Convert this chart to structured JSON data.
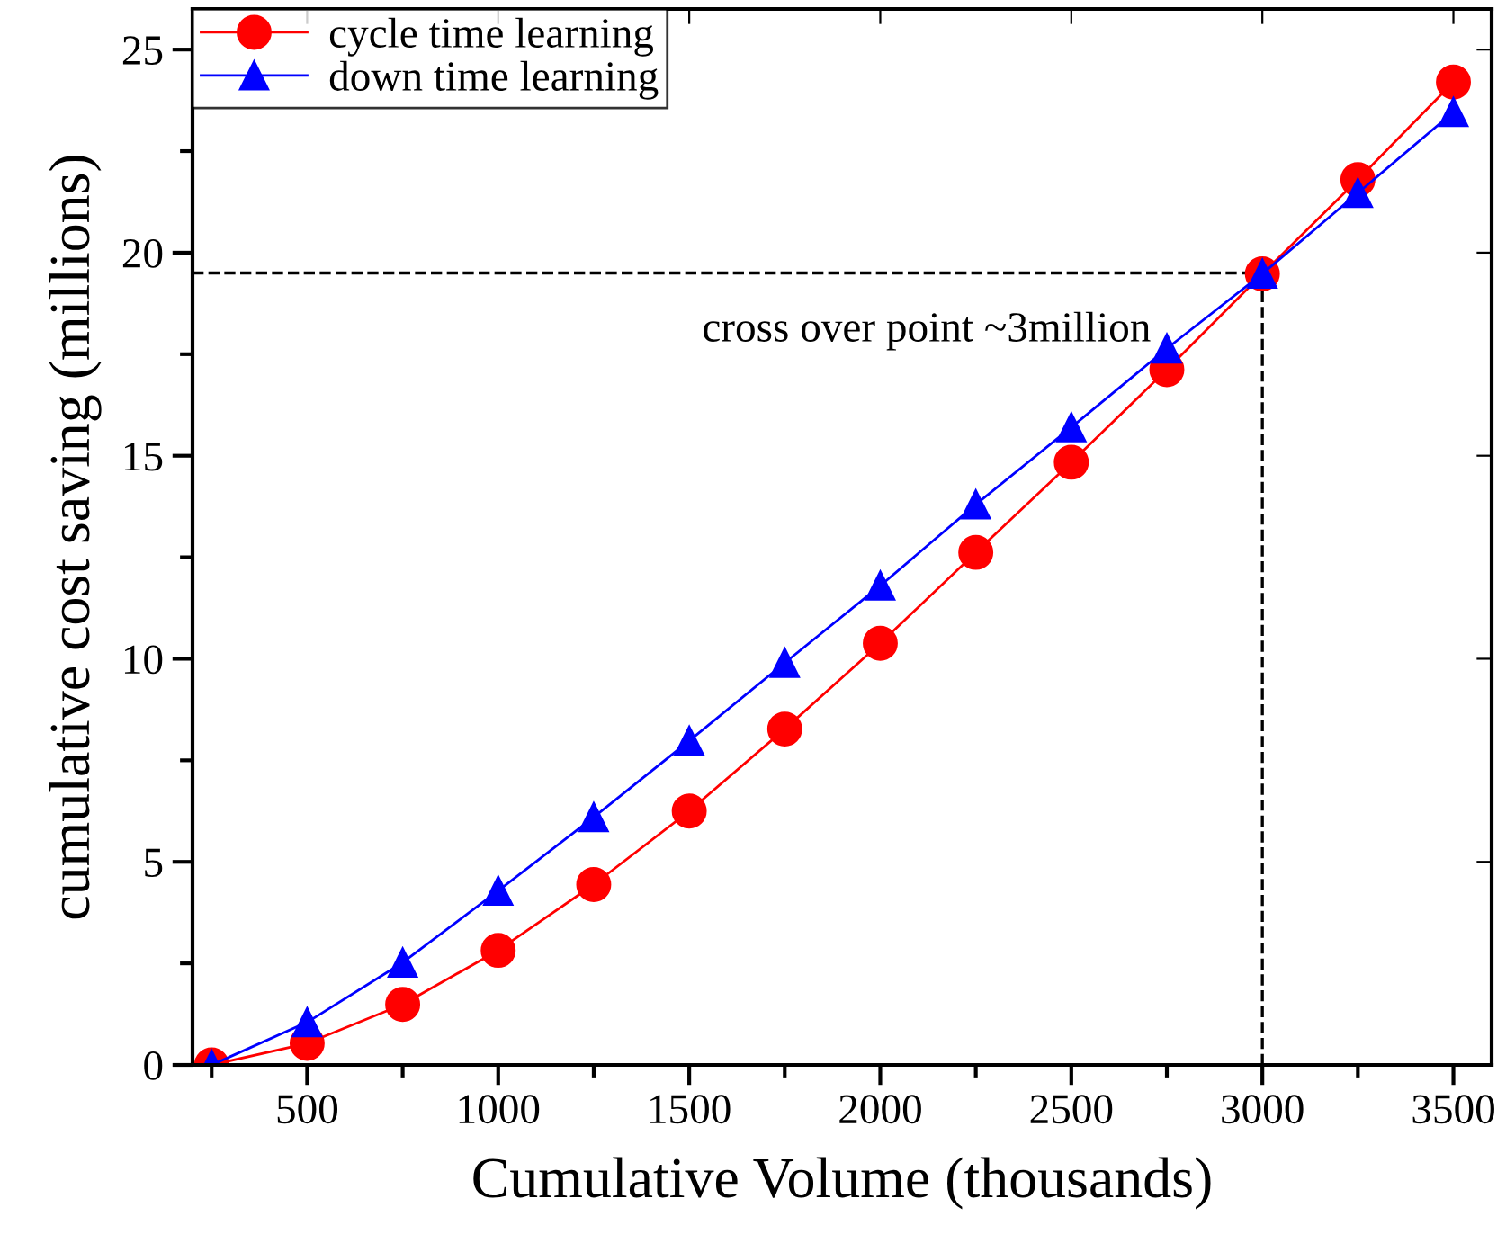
{
  "chart_data": {
    "type": "line",
    "xlabel": "Cumulative Volume (thousands)",
    "ylabel": "cumulative cost saving (millions)",
    "x": [
      250,
      500,
      750,
      1000,
      1250,
      1500,
      1750,
      2000,
      2250,
      2500,
      2750,
      3000,
      3250,
      3500
    ],
    "series": [
      {
        "name": "cycle time learning",
        "color": "#ff0000",
        "marker": "circle",
        "values": [
          0,
          0.53,
          1.49,
          2.82,
          4.44,
          6.25,
          8.27,
          10.38,
          12.62,
          14.84,
          17.12,
          19.48,
          21.8,
          24.2
        ]
      },
      {
        "name": "down time learning",
        "color": "#0000ff",
        "marker": "triangle",
        "values": [
          0,
          1.05,
          2.52,
          4.29,
          6.1,
          7.98,
          9.9,
          11.8,
          13.8,
          15.7,
          17.64,
          19.48,
          21.47,
          23.46
        ]
      }
    ],
    "xlim": [
      200,
      3600
    ],
    "ylim": [
      0,
      26
    ],
    "xticks": [
      500,
      1000,
      1500,
      2000,
      2500,
      3000,
      3500
    ],
    "yticks": [
      0,
      5,
      10,
      15,
      20,
      25
    ],
    "ref_lines": [
      {
        "axis": "y",
        "value": 19.5,
        "color": "#000000",
        "line_style": "dashed"
      },
      {
        "axis": "x",
        "value": 3000,
        "color": "#000000",
        "line_style": "dashed"
      }
    ],
    "annotations": [
      "cross over point ~3million"
    ],
    "grid": false,
    "legend": "top left",
    "line_style": "solid"
  }
}
